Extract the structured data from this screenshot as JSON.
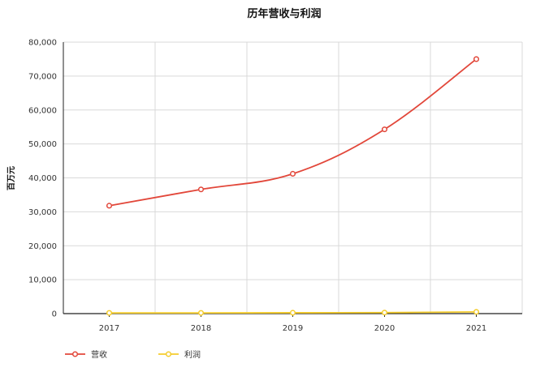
{
  "chart_data": {
    "type": "line",
    "title": "历年营收与利润",
    "ylabel": "百万元",
    "xlabel": "",
    "categories": [
      "2017",
      "2018",
      "2019",
      "2020",
      "2021"
    ],
    "ylim": [
      0,
      80000
    ],
    "yticks": [
      "0",
      "10,000",
      "20,000",
      "30,000",
      "40,000",
      "50,000",
      "60,000",
      "70,000",
      "80,000"
    ],
    "grid": true,
    "legend_position": "bottom-left",
    "series": [
      {
        "name": "营收",
        "color": "#e2473a",
        "values": [
          31800,
          36600,
          41200,
          54300,
          75000
        ]
      },
      {
        "name": "利润",
        "color": "#f4cc2c",
        "values": [
          200,
          200,
          250,
          300,
          500
        ]
      }
    ]
  }
}
